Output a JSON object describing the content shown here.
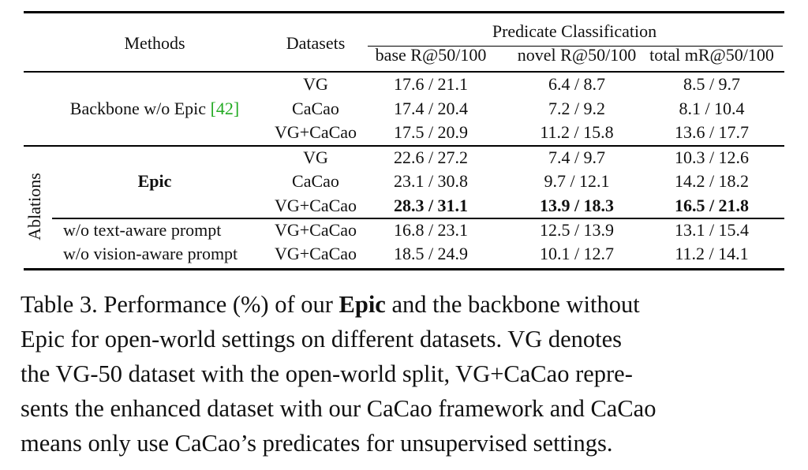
{
  "table": {
    "headers": {
      "methods": "Methods",
      "datasets": "Datasets",
      "group": "Predicate Classification",
      "base": "base R@50/100",
      "novel": "novel R@50/100",
      "total": "total mR@50/100"
    },
    "backbone": {
      "label": "Backbone w/o Epic",
      "cite": "[42]",
      "rows": [
        {
          "dataset": "VG",
          "base": "17.6 / 21.1",
          "novel": "6.4 / 8.7",
          "total": "8.5 / 9.7"
        },
        {
          "dataset": "CaCao",
          "base": "17.4 / 20.4",
          "novel": "7.2 / 9.2",
          "total": "8.1 / 10.4"
        },
        {
          "dataset": "VG+CaCao",
          "base": "17.5 / 20.9",
          "novel": "11.2 / 15.8",
          "total": "13.6 / 17.7"
        }
      ]
    },
    "ablations_label": "Ablations",
    "epic": {
      "label": "Epic",
      "rows": [
        {
          "dataset": "VG",
          "base": "22.6 / 27.2",
          "novel": "7.4 / 9.7",
          "total": "10.3 / 12.6"
        },
        {
          "dataset": "CaCao",
          "base": "23.1 / 30.8",
          "novel": "9.7 / 12.1",
          "total": "14.2 / 18.2"
        },
        {
          "dataset": "VG+CaCao",
          "base": "28.3 / 31.1",
          "novel": "13.9 / 18.3",
          "total": "16.5 / 21.8"
        }
      ]
    },
    "ablation_rows": [
      {
        "method": "w/o text-aware prompt",
        "dataset": "VG+CaCao",
        "base": "16.8 / 23.1",
        "novel": "12.5 / 13.9",
        "total": "13.1 / 15.4"
      },
      {
        "method": "w/o vision-aware prompt",
        "dataset": "VG+CaCao",
        "base": "18.5 / 24.9",
        "novel": "10.1 / 12.7",
        "total": "11.2 / 14.1"
      }
    ]
  },
  "caption": {
    "l1_a": "Table 3. Performance (%) of our ",
    "l1_b": "Epic",
    "l1_c": " and the backbone without",
    "l2": "Epic for open-world settings on different datasets.  VG denotes",
    "l3": "the VG-50 dataset with the open-world split, VG+CaCao repre-",
    "l4": "sents the enhanced dataset with our CaCao framework and CaCao",
    "l5": "means only use CaCao’s predicates for unsupervised settings."
  }
}
